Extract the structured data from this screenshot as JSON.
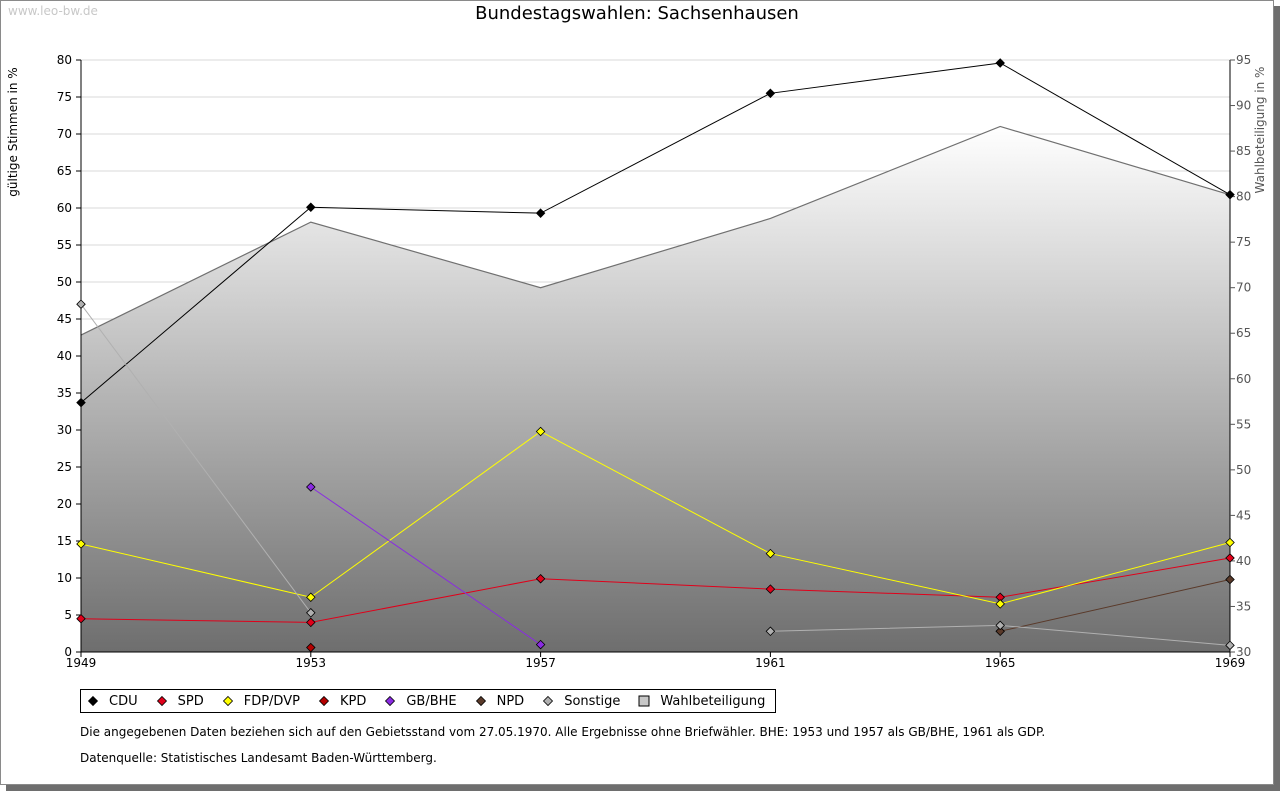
{
  "watermark": "www.leo-bw.de",
  "chart_data": {
    "type": "line",
    "title": "Bundestagswahlen: Sachsenhausen",
    "ylabel": "gültige Stimmen in %",
    "y2label": "Wahlbeteiligung in %",
    "x": [
      "1949",
      "1953",
      "1957",
      "1961",
      "1965",
      "1969"
    ],
    "ylim": [
      0,
      80
    ],
    "y2lim": [
      30,
      95
    ],
    "yticks": [
      0,
      5,
      10,
      15,
      20,
      25,
      30,
      35,
      40,
      45,
      50,
      55,
      60,
      65,
      70,
      75,
      80
    ],
    "y2ticks": [
      30,
      35,
      40,
      45,
      50,
      55,
      60,
      65,
      70,
      75,
      80,
      85,
      90,
      95
    ],
    "grid": true,
    "legend_position": "bottom",
    "series": [
      {
        "name": "CDU",
        "color": "#000000",
        "values": [
          33.7,
          60.1,
          59.3,
          75.5,
          79.6,
          61.8
        ]
      },
      {
        "name": "SPD",
        "color": "#e0001a",
        "values": [
          4.5,
          4.0,
          9.9,
          8.5,
          7.4,
          12.7
        ]
      },
      {
        "name": "FDP/DVP",
        "color": "#ffff00",
        "values": [
          14.6,
          7.4,
          29.8,
          13.3,
          6.5,
          14.8
        ]
      },
      {
        "name": "KPD",
        "color": "#b30000",
        "values": [
          null,
          0.6,
          null,
          null,
          null,
          null
        ]
      },
      {
        "name": "GB/BHE",
        "color": "#8a2be2",
        "values": [
          null,
          22.3,
          1.0,
          null,
          null,
          null
        ]
      },
      {
        "name": "NPD",
        "color": "#5a3a2a",
        "values": [
          null,
          null,
          null,
          null,
          2.8,
          9.8
        ]
      },
      {
        "name": "Sonstige",
        "color": "#b0b0b0",
        "values": [
          47.0,
          5.3,
          null,
          2.8,
          3.6,
          0.9
        ]
      }
    ],
    "turnout": {
      "name": "Wahlbeteiligung",
      "axis": "right",
      "values": [
        64.8,
        77.2,
        70.0,
        77.6,
        87.7,
        80.2
      ]
    }
  },
  "legend": [
    {
      "label": "CDU",
      "color": "#000000",
      "shape": "diamond"
    },
    {
      "label": "SPD",
      "color": "#e0001a",
      "shape": "diamond"
    },
    {
      "label": "FDP/DVP",
      "color": "#ffff00",
      "shape": "diamond"
    },
    {
      "label": "KPD",
      "color": "#b30000",
      "shape": "diamond"
    },
    {
      "label": "GB/BHE",
      "color": "#8a2be2",
      "shape": "diamond"
    },
    {
      "label": "NPD",
      "color": "#5a3a2a",
      "shape": "diamond"
    },
    {
      "label": "Sonstige",
      "color": "#b0b0b0",
      "shape": "diamond"
    },
    {
      "label": "Wahlbeteiligung",
      "color": "#c8c8c8",
      "shape": "square"
    }
  ],
  "notes": {
    "line1": "Die angegebenen Daten beziehen sich auf den Gebietsstand vom 27.05.1970. Alle Ergebnisse ohne Briefwähler. BHE: 1953 und 1957 als GB/BHE, 1961 als GDP.",
    "line2": "Datenquelle: Statistisches Landesamt Baden-Württemberg."
  }
}
